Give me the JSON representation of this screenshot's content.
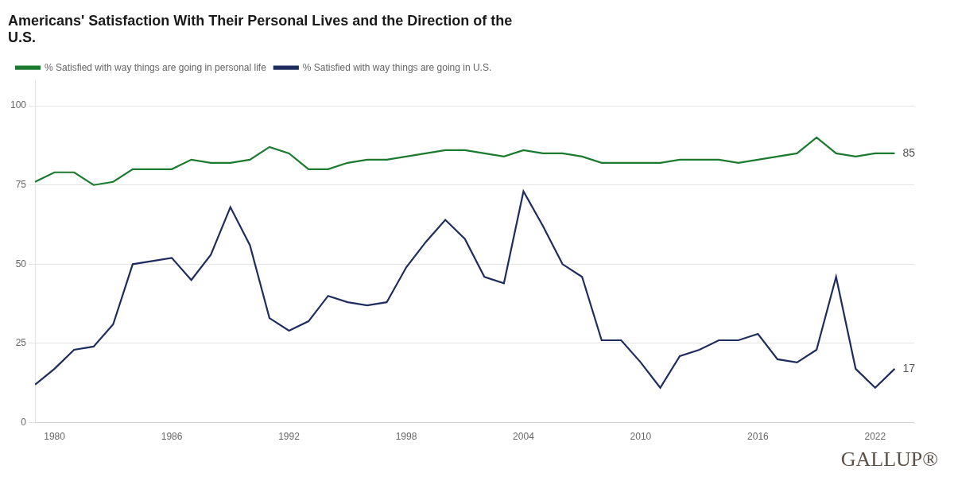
{
  "chart_data": {
    "type": "line",
    "title": "Americans' Satisfaction With Their Personal Lives and the Direction of the\nU.S.",
    "x": [
      1979,
      1980,
      1981,
      1982,
      1983,
      1984,
      1985,
      1986,
      1987,
      1988,
      1989,
      1990,
      1991,
      1992,
      1993,
      1994,
      1995,
      1996,
      1997,
      1998,
      1999,
      2000,
      2001,
      2002,
      2003,
      2004,
      2005,
      2006,
      2007,
      2008,
      2009,
      2010,
      2011,
      2012,
      2013,
      2014,
      2015,
      2016,
      2017,
      2018,
      2019,
      2020,
      2021,
      2022,
      2023
    ],
    "series": [
      {
        "name": "% Satisfied with way things are going in personal life",
        "color": "#1a7a2e",
        "values": [
          76,
          79,
          79,
          75,
          76,
          80,
          80,
          80,
          83,
          82,
          82,
          83,
          87,
          85,
          80,
          80,
          82,
          83,
          83,
          84,
          85,
          86,
          86,
          85,
          84,
          86,
          85,
          85,
          84,
          82,
          82,
          82,
          82,
          83,
          83,
          83,
          82,
          83,
          84,
          85,
          90,
          85,
          84,
          85,
          85
        ]
      },
      {
        "name": "% Satisfied with way things are going in U.S.",
        "color": "#1e2d5e",
        "values": [
          12,
          17,
          23,
          24,
          31,
          50,
          51,
          52,
          45,
          53,
          68,
          56,
          33,
          29,
          32,
          40,
          38,
          37,
          38,
          49,
          57,
          64,
          58,
          46,
          44,
          73,
          62,
          50,
          46,
          26,
          26,
          19,
          11,
          21,
          23,
          26,
          26,
          28,
          20,
          19,
          23,
          46,
          17,
          11,
          17
        ]
      }
    ],
    "xlim": [
      1979,
      2024
    ],
    "xticks": [
      1980,
      1986,
      1992,
      1998,
      2004,
      2010,
      2016,
      2022
    ],
    "ylim": [
      0,
      108
    ],
    "yticks": [
      0,
      25,
      50,
      75,
      100
    ],
    "grid": "y",
    "legend": "upper left",
    "annotations": [
      {
        "text": "85",
        "x": 2023,
        "y": 85
      },
      {
        "text": "17",
        "x": 2023,
        "y": 17
      },
      {
        "text": "GALLUP®"
      }
    ]
  }
}
